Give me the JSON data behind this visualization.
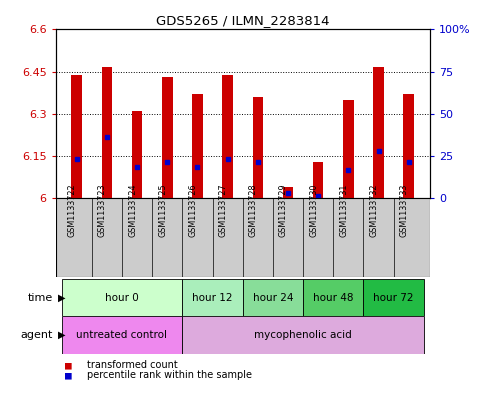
{
  "title": "GDS5265 / ILMN_2283814",
  "samples": [
    "GSM1133722",
    "GSM1133723",
    "GSM1133724",
    "GSM1133725",
    "GSM1133726",
    "GSM1133727",
    "GSM1133728",
    "GSM1133729",
    "GSM1133730",
    "GSM1133731",
    "GSM1133732",
    "GSM1133733"
  ],
  "bar_values": [
    6.44,
    6.465,
    6.31,
    6.43,
    6.37,
    6.44,
    6.36,
    6.04,
    6.13,
    6.35,
    6.465,
    6.37
  ],
  "bar_base": 6.0,
  "blue_dot_values": [
    6.14,
    6.22,
    6.11,
    6.13,
    6.11,
    6.14,
    6.13,
    6.02,
    6.01,
    6.1,
    6.17,
    6.13
  ],
  "ylim_left": [
    6.0,
    6.6
  ],
  "ylim_right": [
    0,
    100
  ],
  "yticks_left": [
    6.0,
    6.15,
    6.3,
    6.45,
    6.6
  ],
  "ytick_labels_left": [
    "6",
    "6.15",
    "6.3",
    "6.45",
    "6.6"
  ],
  "yticks_right": [
    0,
    25,
    50,
    75,
    100
  ],
  "ytick_labels_right": [
    "0",
    "25",
    "50",
    "75",
    "100%"
  ],
  "bar_color": "#CC0000",
  "blue_dot_color": "#0000CC",
  "bar_width": 0.35,
  "time_groups": [
    {
      "label": "hour 0",
      "start": 0,
      "end": 3,
      "color": "#ccffcc"
    },
    {
      "label": "hour 12",
      "start": 4,
      "end": 5,
      "color": "#aaeebb"
    },
    {
      "label": "hour 24",
      "start": 6,
      "end": 7,
      "color": "#88dd99"
    },
    {
      "label": "hour 48",
      "start": 8,
      "end": 9,
      "color": "#55cc66"
    },
    {
      "label": "hour 72",
      "start": 10,
      "end": 11,
      "color": "#22bb44"
    }
  ],
  "agent_groups": [
    {
      "label": "untreated control",
      "start": 0,
      "end": 3,
      "color": "#ee88ee"
    },
    {
      "label": "mycophenolic acid",
      "start": 4,
      "end": 11,
      "color": "#ddaadd"
    }
  ],
  "legend_items": [
    {
      "label": "transformed count",
      "color": "#CC0000"
    },
    {
      "label": "percentile rank within the sample",
      "color": "#0000CC"
    }
  ],
  "bg_color": "#ffffff",
  "plot_bg_color": "#ffffff",
  "grid_color": "#000000",
  "tick_color_left": "#CC0000",
  "tick_color_right": "#0000CC",
  "sample_bg_color": "#cccccc",
  "border_color": "#000000"
}
